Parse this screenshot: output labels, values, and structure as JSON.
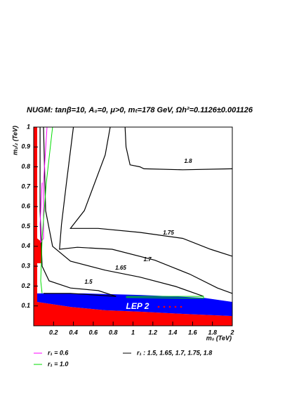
{
  "chart_data": {
    "type": "contour",
    "title": "NUGM:  tanβ=10, A₀=0, μ>0, mₜ=178 GeV, Ωh²=0.1126±0.001126",
    "x_label": "m₀ (TeV)",
    "y_label": "m₁/₂ (TeV)",
    "xlim": [
      0,
      2
    ],
    "ylim": [
      0,
      1
    ],
    "xticks": [
      0.2,
      0.4,
      0.6,
      0.8,
      1,
      1.2,
      1.4,
      1.6,
      1.8,
      2
    ],
    "yticks": [
      0.1,
      0.2,
      0.3,
      0.4,
      0.5,
      0.6,
      0.7,
      0.8,
      0.9,
      1
    ],
    "regions": [
      {
        "color": "#ff0000",
        "x": [
          0,
          0.035,
          0.035,
          0.085,
          0.085,
          0.035,
          0.035,
          0.37,
          0.72,
          1.07,
          1.5,
          2.0,
          2.0,
          0
        ],
        "values": [
          1.0,
          1.0,
          0.44,
          0.42,
          0.315,
          0.315,
          0.12,
          0.095,
          0.078,
          0.071,
          0.06,
          0.049,
          0,
          0
        ]
      },
      {
        "color": "#0000ff",
        "x": [
          0.035,
          0.035,
          0.51,
          1.07,
          1.71,
          2.0,
          2.0,
          1.5,
          1.07,
          0.72,
          0.37
        ],
        "values": [
          0.12,
          0.163,
          0.163,
          0.155,
          0.141,
          0.12,
          0.049,
          0.06,
          0.071,
          0.078,
          0.095
        ]
      }
    ],
    "region_label": "LEP 2",
    "series": [
      {
        "name": "r₁ = 0.6",
        "color": "#ff00ff",
        "x": [
          0.134,
          0.099,
          0.099,
          0.071,
          0.064,
          0.085
        ],
        "values": [
          1.0,
          0.72,
          0.44,
          0.42,
          0.51,
          0.72
        ]
      },
      {
        "name": "r₁ = 1.0",
        "color": "#00dd00",
        "x": [
          0.19,
          0.127,
          0.085,
          0.071,
          0.085,
          null,
          0.93,
          1.71,
          1.71,
          0.93
        ],
        "values": [
          1.0,
          0.72,
          0.44,
          0.226,
          0.163,
          null,
          0.148,
          0.148,
          0.138,
          0.142
        ]
      }
    ],
    "contour_legend": "r₁ : 1.5, 1.65, 1.7, 1.75, 1.8",
    "contour_color": "#000000",
    "contours": [
      {
        "level": 1.5,
        "x": [
          0.064,
          0.064,
          0.085,
          0.155,
          0.37,
          0.65,
          0.83,
          0.37,
          0.099
        ],
        "values": [
          1.0,
          0.58,
          0.3,
          0.226,
          0.19,
          0.177,
          0.148,
          0.163,
          0.163
        ]
      },
      {
        "level": 1.65,
        "x": [
          0.099,
          0.12,
          0.19,
          0.37,
          0.72,
          1.07,
          1.43,
          1.71
        ],
        "values": [
          1.0,
          0.58,
          0.4,
          0.325,
          0.28,
          0.245,
          0.198,
          0.148
        ]
      },
      {
        "level": 1.7,
        "x": [
          0.4,
          0.33,
          0.28,
          0.26,
          0.44,
          0.79,
          1.22,
          1.57,
          1.85,
          2.0
        ],
        "values": [
          1.0,
          0.72,
          0.51,
          0.385,
          0.395,
          0.385,
          0.33,
          0.26,
          0.19,
          0.163
        ]
      },
      {
        "level": 1.75,
        "x": [
          0.77,
          0.72,
          0.51,
          0.37,
          0.65,
          1.07,
          1.5,
          1.78,
          2.0
        ],
        "values": [
          1.0,
          0.86,
          0.58,
          0.49,
          0.49,
          0.47,
          0.44,
          0.385,
          0.35
        ]
      },
      {
        "level": 1.8,
        "x": [
          0.92,
          0.93,
          0.97,
          1.07,
          1.11,
          1.5,
          2.0
        ],
        "values": [
          1.0,
          0.9,
          0.81,
          0.8,
          0.79,
          0.785,
          0.79
        ]
      }
    ]
  }
}
